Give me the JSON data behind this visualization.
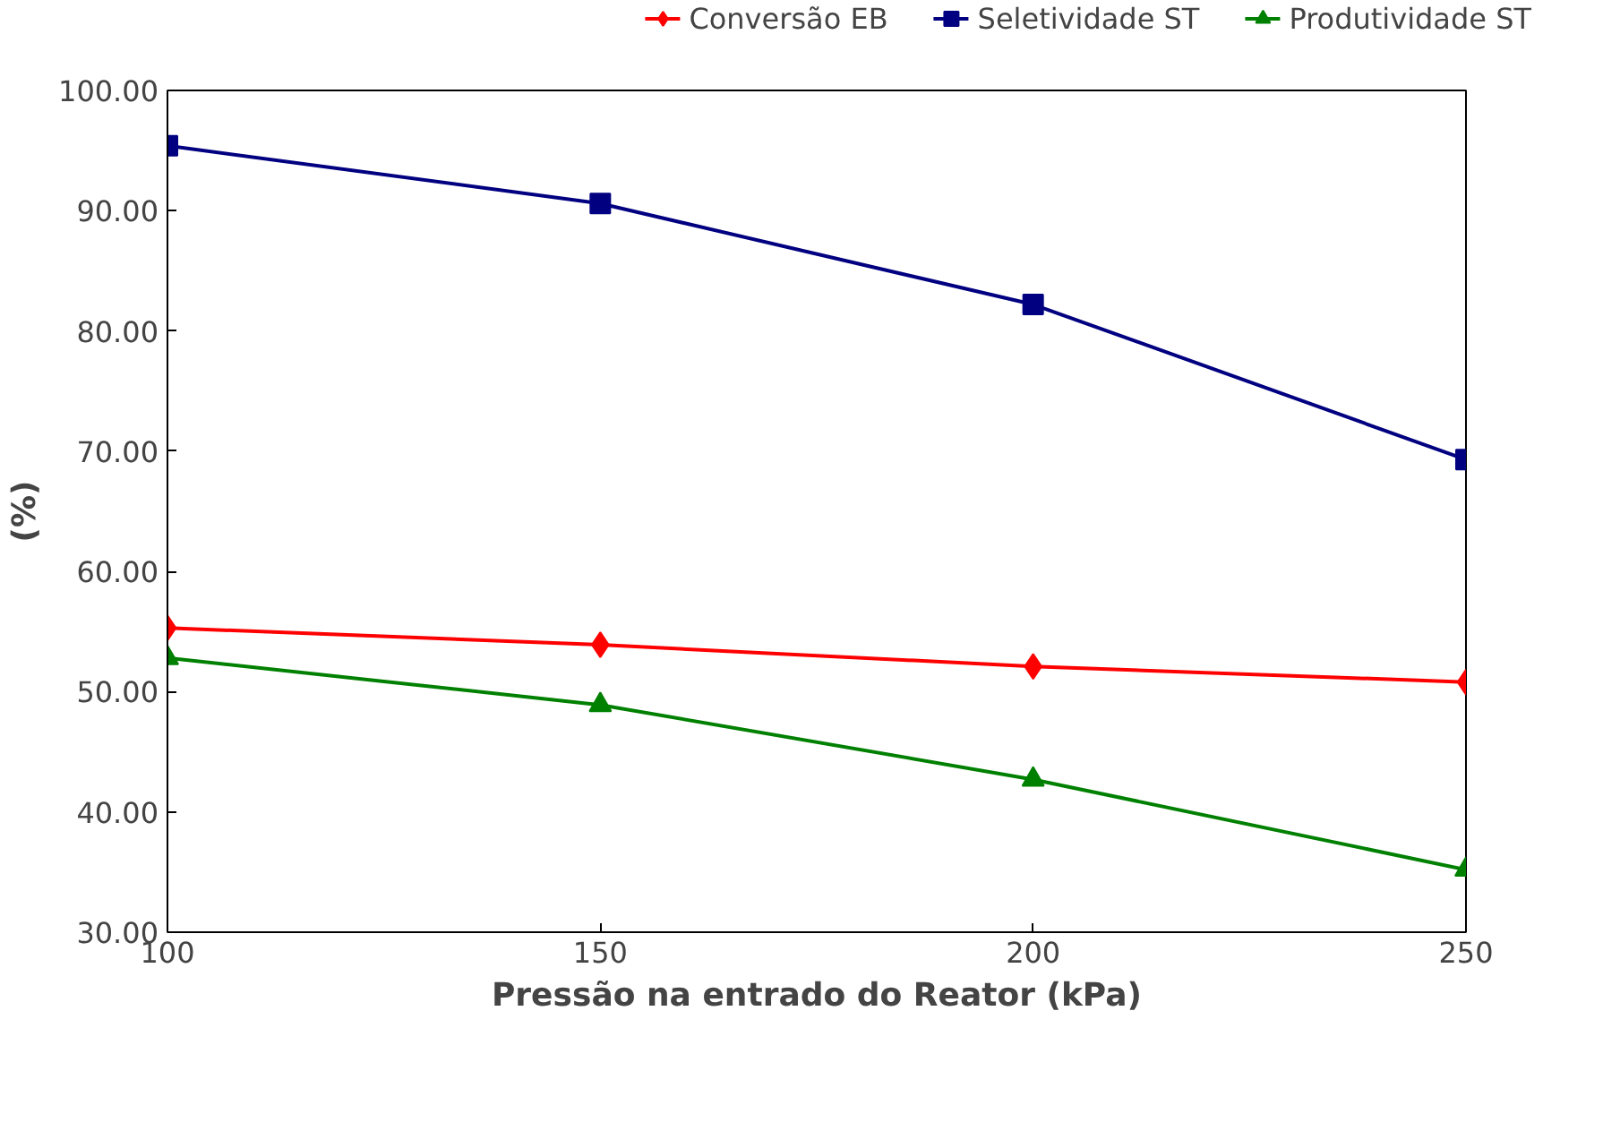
{
  "chart_data": {
    "type": "line",
    "xlabel": "Pressão na entrado do Reator (kPa)",
    "ylabel": "(%)",
    "x": [
      100,
      150,
      200,
      250
    ],
    "series": [
      {
        "name": "Conversão EB",
        "color": "#ff0000",
        "marker": "diamond",
        "values": [
          55.3,
          53.9,
          52.1,
          50.8
        ]
      },
      {
        "name": "Seletividade ST",
        "color": "#000080",
        "marker": "square",
        "values": [
          95.4,
          90.6,
          82.2,
          69.3
        ]
      },
      {
        "name": "Produtividade ST",
        "color": "#008000",
        "marker": "triangle",
        "values": [
          52.8,
          48.9,
          42.7,
          35.2
        ]
      }
    ],
    "xlim": [
      100,
      250
    ],
    "xticks": [
      100,
      150,
      200,
      250
    ],
    "ylim": [
      30,
      100
    ],
    "yticks": [
      {
        "value": 30,
        "label": "30.00"
      },
      {
        "value": 40,
        "label": "40.00"
      },
      {
        "value": 50,
        "label": "50.00"
      },
      {
        "value": 60,
        "label": "60.00"
      },
      {
        "value": 70,
        "label": "70.00"
      },
      {
        "value": 80,
        "label": "80.00"
      },
      {
        "value": 90,
        "label": "90.00"
      },
      {
        "value": 100,
        "label": "100.00"
      }
    ],
    "grid": false,
    "legend": "top",
    "line_style": "solid"
  }
}
